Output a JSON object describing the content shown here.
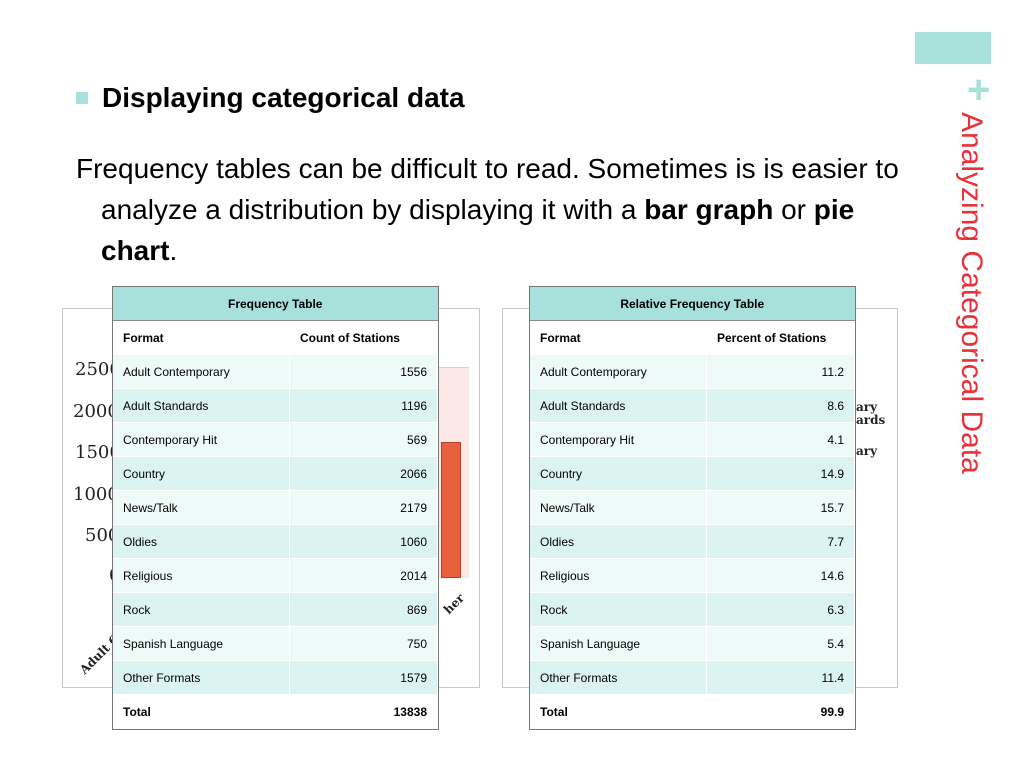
{
  "slide": {
    "side_title": "Analyzing Categorical Data",
    "bullet": "Displaying categorical data",
    "paragraph": {
      "part1": "Frequency tables can be difficult to read.  Sometimes is is easier to analyze a distribution by displaying it with a ",
      "bold1": "bar graph",
      "mid": " or ",
      "bold2": "pie chart",
      "end": "."
    },
    "colors": {
      "accent": "#a8e0dc",
      "title_red": "#e8323a",
      "bar": "#e8603e"
    }
  },
  "background_chart_left": {
    "tick_labels": [
      "2500",
      "2000",
      "1500",
      "1000",
      "500",
      "0"
    ],
    "category_fragment": "Adult Co",
    "other_fragment": "her"
  },
  "background_chart_right": {
    "legend_fragments": [
      "ary",
      "ards",
      "ary"
    ]
  },
  "frequency_table": {
    "title": "Frequency Table",
    "headers": [
      "Format",
      "Count of Stations"
    ],
    "rows": [
      [
        "Adult Contemporary",
        "1556"
      ],
      [
        "Adult Standards",
        "1196"
      ],
      [
        "Contemporary Hit",
        "569"
      ],
      [
        "Country",
        "2066"
      ],
      [
        "News/Talk",
        "2179"
      ],
      [
        "Oldies",
        "1060"
      ],
      [
        "Religious",
        "2014"
      ],
      [
        "Rock",
        "869"
      ],
      [
        "Spanish Language",
        "750"
      ],
      [
        "Other Formats",
        "1579"
      ]
    ],
    "total": [
      "Total",
      "13838"
    ]
  },
  "relative_frequency_table": {
    "title": "Relative Frequency Table",
    "headers": [
      "Format",
      "Percent of Stations"
    ],
    "rows": [
      [
        "Adult Contemporary",
        "11.2"
      ],
      [
        "Adult Standards",
        "8.6"
      ],
      [
        "Contemporary Hit",
        "4.1"
      ],
      [
        "Country",
        "14.9"
      ],
      [
        "News/Talk",
        "15.7"
      ],
      [
        "Oldies",
        "7.7"
      ],
      [
        "Religious",
        "14.6"
      ],
      [
        "Rock",
        "6.3"
      ],
      [
        "Spanish Language",
        "5.4"
      ],
      [
        "Other Formats",
        "11.4"
      ]
    ],
    "total": [
      "Total",
      "99.9"
    ]
  }
}
